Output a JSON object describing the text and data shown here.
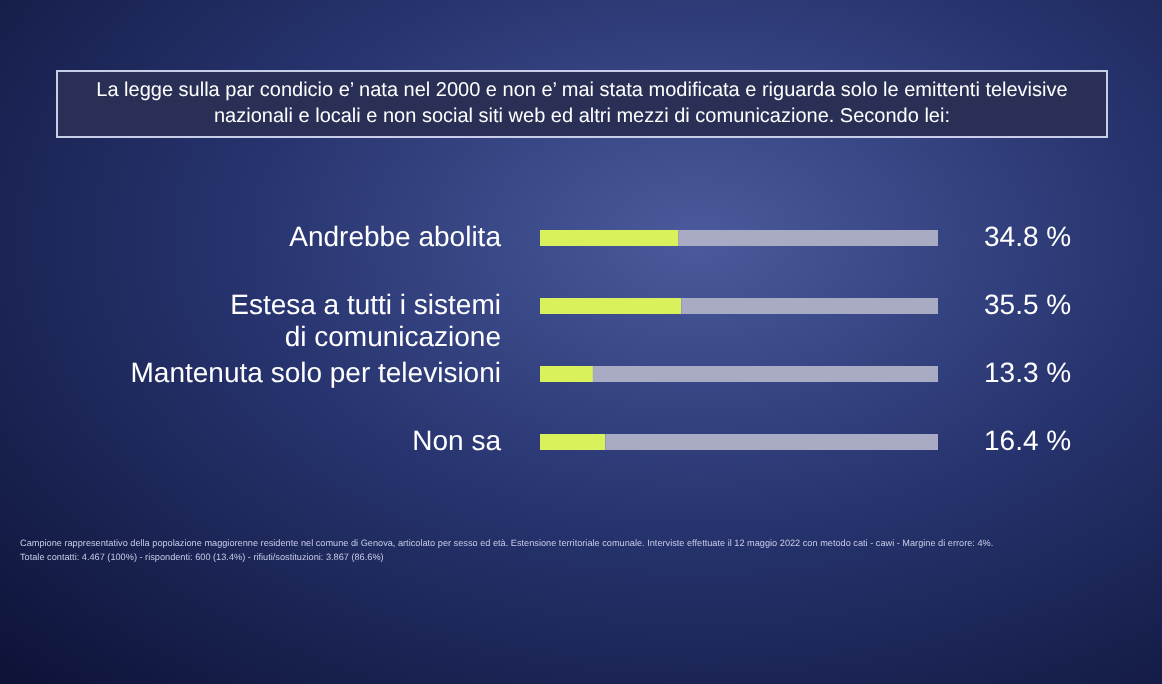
{
  "chart_data": {
    "type": "bar",
    "orientation": "horizontal",
    "stacked": true,
    "title": "La legge sulla par condicio e’ nata nel 2000 e non e’ mai stata modificata e riguarda solo le emittenti televisive nazionali e locali e non social siti web ed altri mezzi di comunicazione. Secondo lei:",
    "categories": [
      "Andrebbe abolita",
      "Estesa a tutti i sistemi di comunicazione",
      "Mantenuta solo per televisioni",
      "Non sa"
    ],
    "series": [
      {
        "color": "#d9f25c",
        "values": [
          34.8,
          35.5,
          13.3,
          16.4
        ],
        "value_labels": [
          "34.8 %",
          "35.5 %",
          "13.3 %",
          "16.4 %"
        ]
      },
      {
        "color": "#a9abc4",
        "values": [
          65.2,
          64.5,
          86.7,
          83.6
        ]
      }
    ],
    "xlim": [
      0,
      100
    ],
    "tick_labels": "y",
    "grid": false,
    "annotations": [
      "Campione rappresentativo della popolazione maggiorenne residente nel comune di Genova, articolato per sesso ed età. Estensione territoriale comunale. Interviste effettuate il 12 maggio 2022 con metodo cati - cawi - Margine di errore: 4%.",
      "Totale contatti: 4.467 (100%) - rispondenti: 600 (13.4%) - rifiuti/sostituzioni: 3.867 (86.6%)"
    ]
  }
}
